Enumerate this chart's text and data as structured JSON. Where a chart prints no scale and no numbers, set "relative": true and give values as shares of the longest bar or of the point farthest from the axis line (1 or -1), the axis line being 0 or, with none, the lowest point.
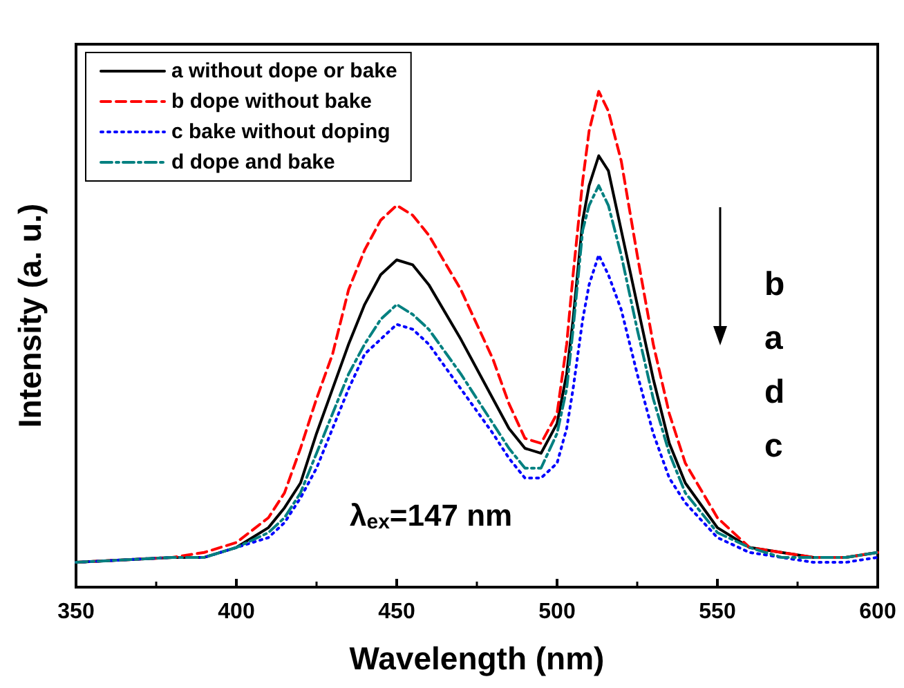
{
  "chart_data": {
    "type": "line",
    "relative": true,
    "xlabel": "Wavelength (nm)",
    "ylabel": "Intensity (a. u.)",
    "x": [
      350,
      380,
      390,
      400,
      410,
      415,
      420,
      425,
      430,
      435,
      440,
      445,
      450,
      455,
      460,
      470,
      480,
      485,
      490,
      495,
      500,
      503,
      505,
      508,
      510,
      513,
      516,
      520,
      525,
      530,
      535,
      540,
      550,
      560,
      570,
      580,
      590,
      600
    ],
    "xlim": [
      350,
      600
    ],
    "xticks": [
      350,
      400,
      450,
      500,
      550,
      600
    ],
    "series": [
      {
        "name": "a without dope or bake",
        "color": "#000000",
        "line_style": "solid",
        "values": [
          0.05,
          0.06,
          0.06,
          0.08,
          0.12,
          0.16,
          0.21,
          0.31,
          0.4,
          0.49,
          0.57,
          0.63,
          0.66,
          0.65,
          0.61,
          0.5,
          0.38,
          0.32,
          0.28,
          0.27,
          0.33,
          0.43,
          0.54,
          0.74,
          0.81,
          0.87,
          0.84,
          0.72,
          0.57,
          0.42,
          0.29,
          0.21,
          0.12,
          0.08,
          0.07,
          0.06,
          0.06,
          0.07
        ]
      },
      {
        "name": "b dope without bake",
        "color": "#ff0000",
        "line_style": "dashed",
        "values": [
          0.05,
          0.06,
          0.07,
          0.09,
          0.14,
          0.19,
          0.28,
          0.38,
          0.47,
          0.6,
          0.68,
          0.74,
          0.77,
          0.75,
          0.71,
          0.6,
          0.46,
          0.37,
          0.3,
          0.29,
          0.35,
          0.49,
          0.63,
          0.82,
          0.92,
          1.0,
          0.96,
          0.86,
          0.67,
          0.49,
          0.35,
          0.25,
          0.14,
          0.08,
          0.07,
          0.06,
          0.06,
          0.07
        ]
      },
      {
        "name": "c bake without doping",
        "color": "#0000ff",
        "line_style": "dotted",
        "values": [
          0.05,
          0.06,
          0.06,
          0.08,
          0.1,
          0.13,
          0.18,
          0.24,
          0.32,
          0.4,
          0.47,
          0.5,
          0.53,
          0.52,
          0.49,
          0.4,
          0.31,
          0.26,
          0.22,
          0.22,
          0.25,
          0.32,
          0.4,
          0.54,
          0.61,
          0.67,
          0.63,
          0.56,
          0.43,
          0.31,
          0.22,
          0.17,
          0.1,
          0.07,
          0.06,
          0.05,
          0.05,
          0.06
        ]
      },
      {
        "name": "d dope and bake",
        "color": "#008080",
        "line_style": "dashdot",
        "values": [
          0.05,
          0.06,
          0.06,
          0.08,
          0.11,
          0.14,
          0.19,
          0.27,
          0.35,
          0.43,
          0.49,
          0.54,
          0.57,
          0.55,
          0.52,
          0.43,
          0.33,
          0.28,
          0.24,
          0.24,
          0.31,
          0.4,
          0.52,
          0.72,
          0.77,
          0.81,
          0.77,
          0.67,
          0.52,
          0.38,
          0.27,
          0.19,
          0.11,
          0.08,
          0.06,
          0.06,
          0.06,
          0.07
        ]
      }
    ],
    "annotations": [
      "λ$_{ex}$=147 nm",
      "b",
      "a",
      "d",
      "c"
    ],
    "legend": "top left",
    "grid": false,
    "marker": "none",
    "tick_labels": "x"
  }
}
